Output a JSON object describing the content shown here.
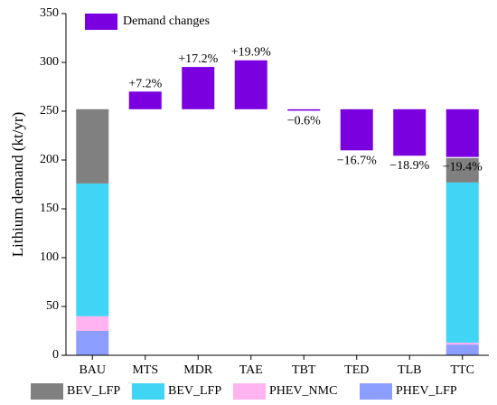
{
  "chart_data": {
    "type": "bar",
    "ylabel": "Lithium demand (kt/yr)",
    "ylim": [
      0,
      350
    ],
    "yticks": [
      0,
      50,
      100,
      150,
      200,
      250,
      300,
      350
    ],
    "categories": [
      "BAU",
      "MTS",
      "MDR",
      "TAE",
      "TBT",
      "TED",
      "TLB",
      "TTC"
    ],
    "baseline": 252,
    "stack_series": [
      {
        "name": "PHEV_LFP",
        "color": "#8c9eff"
      },
      {
        "name": "PHEV_NMC",
        "color": "#ffb3f0"
      },
      {
        "name": "BEV_LFP",
        "color": "#40d4f5"
      },
      {
        "name": "BEV_LFP",
        "color": "#808080"
      }
    ],
    "stacks": [
      {
        "category": "BAU",
        "values": [
          25,
          15,
          136,
          76
        ]
      },
      {
        "category": "TTC",
        "values": [
          11,
          2,
          164,
          25
        ]
      }
    ],
    "changes": {
      "name": "Demand changes",
      "color": "#7b00e0",
      "items": [
        {
          "category": "MTS",
          "value": 18.1,
          "label": "+7.2%"
        },
        {
          "category": "MDR",
          "value": 43.3,
          "label": "+17.2%"
        },
        {
          "category": "TAE",
          "value": 50.1,
          "label": "+19.9%"
        },
        {
          "category": "TBT",
          "value": -1.5,
          "label": "−0.6%"
        },
        {
          "category": "TED",
          "value": -42.1,
          "label": "−16.7%"
        },
        {
          "category": "TLB",
          "value": -47.6,
          "label": "−18.9%"
        },
        {
          "category": "TTC",
          "value": -48.9,
          "label": "−19.4%"
        }
      ]
    },
    "legend": {
      "top": [
        "Demand changes"
      ],
      "bottom": [
        "BEV_LFP",
        "BEV_LFP",
        "PHEV_NMC",
        "PHEV_LFP"
      ],
      "bottom_colors": [
        "#808080",
        "#40d4f5",
        "#ffb3f0",
        "#8c9eff"
      ]
    },
    "grid": false
  }
}
